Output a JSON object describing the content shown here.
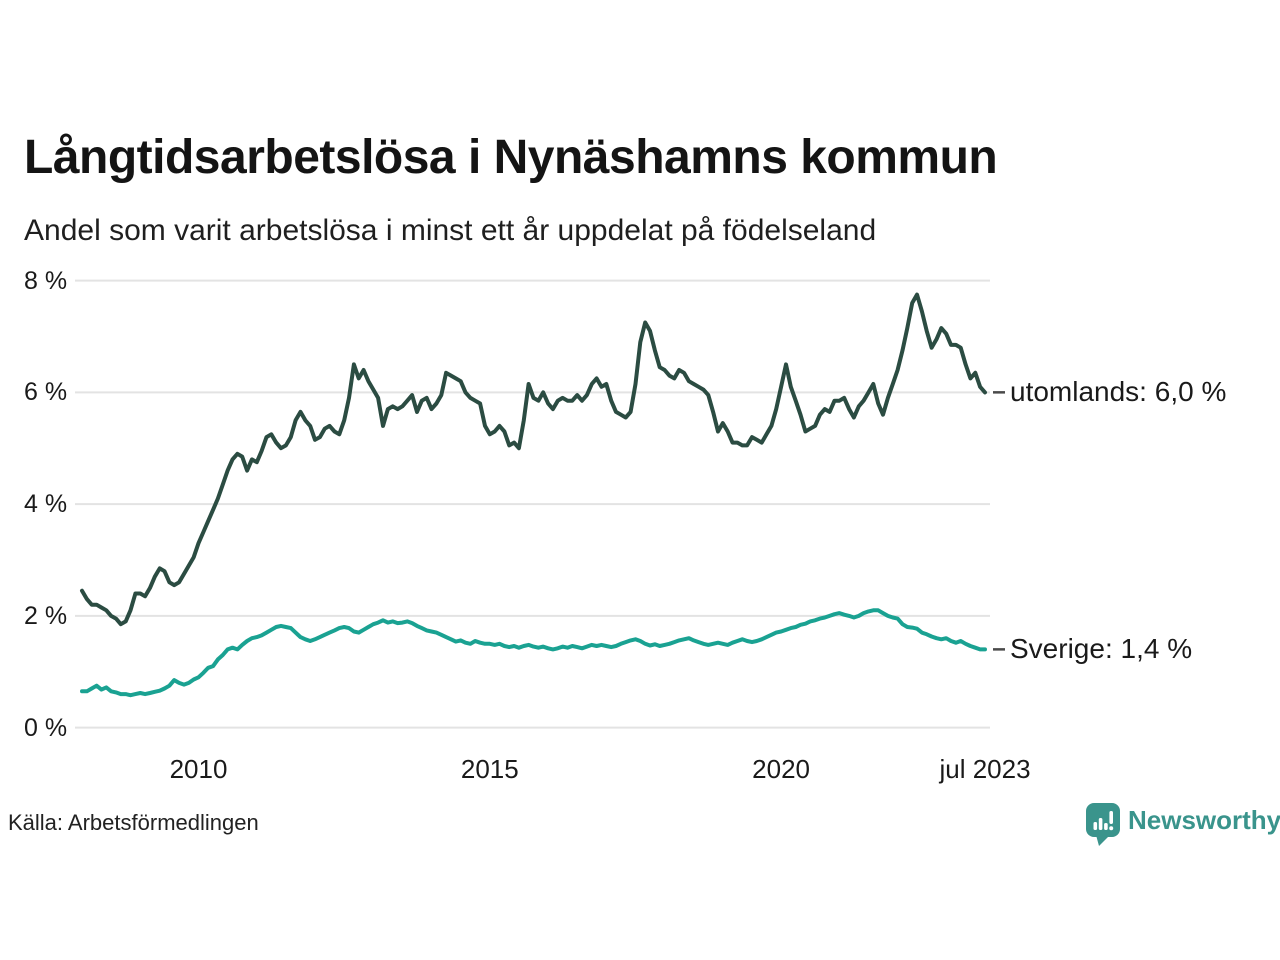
{
  "header": {
    "title": "Långtidsarbetslösa i Nynäshamns kommun",
    "subtitle": "Andel som varit arbetslösa i minst ett år uppdelat på födelseland"
  },
  "footer": {
    "source": "Källa: Arbetsförmedlingen",
    "brand": "Newsworthy",
    "brand_icon": "bar-chart-speech-bubble-icon",
    "brand_color": "#3a948c"
  },
  "chart_data": {
    "type": "line",
    "title": "Långtidsarbetslösa i Nynäshamns kommun",
    "subtitle": "Andel som varit arbetslösa i minst ett år uppdelat på födelseland",
    "x_unit": "month",
    "x_range": [
      "2008-01",
      "2023-07"
    ],
    "ylim": [
      0,
      8
    ],
    "grid": "horizontal",
    "grid_color": "#e3e3e3",
    "annotation_dash_color": "#4a4a4a",
    "y_ticks": [
      0,
      2,
      4,
      6,
      8
    ],
    "y_tick_labels": [
      "0 %",
      "2 %",
      "4 %",
      "6 %",
      "8 %"
    ],
    "x_tick_labels": [
      "2010",
      "2015",
      "2020",
      "jul 2023"
    ],
    "x_tick_month_index": [
      24,
      84,
      144,
      186
    ],
    "legend_position": "end-of-line-labels",
    "series": [
      {
        "name": "utomlands",
        "color": "#2b4c42",
        "end_label": "utomlands: 6,0 %",
        "last_value_label": "6,0 %",
        "values": [
          2.45,
          2.3,
          2.2,
          2.2,
          2.15,
          2.1,
          2.0,
          1.95,
          1.85,
          1.9,
          2.1,
          2.4,
          2.4,
          2.35,
          2.5,
          2.7,
          2.85,
          2.8,
          2.6,
          2.55,
          2.6,
          2.75,
          2.9,
          3.05,
          3.3,
          3.5,
          3.7,
          3.9,
          4.1,
          4.35,
          4.6,
          4.8,
          4.9,
          4.85,
          4.6,
          4.8,
          4.75,
          4.95,
          5.2,
          5.25,
          5.1,
          5.0,
          5.05,
          5.2,
          5.5,
          5.65,
          5.5,
          5.4,
          5.15,
          5.2,
          5.35,
          5.4,
          5.3,
          5.25,
          5.5,
          5.9,
          6.5,
          6.25,
          6.4,
          6.2,
          6.05,
          5.9,
          5.4,
          5.7,
          5.75,
          5.7,
          5.75,
          5.85,
          5.95,
          5.65,
          5.85,
          5.9,
          5.7,
          5.8,
          5.95,
          6.35,
          6.3,
          6.25,
          6.2,
          6.0,
          5.9,
          5.85,
          5.8,
          5.4,
          5.25,
          5.3,
          5.4,
          5.3,
          5.05,
          5.1,
          5.0,
          5.5,
          6.15,
          5.9,
          5.85,
          6.0,
          5.8,
          5.7,
          5.85,
          5.9,
          5.85,
          5.85,
          5.95,
          5.85,
          5.95,
          6.15,
          6.25,
          6.1,
          6.15,
          5.85,
          5.65,
          5.6,
          5.55,
          5.65,
          6.15,
          6.9,
          7.25,
          7.1,
          6.75,
          6.45,
          6.4,
          6.3,
          6.25,
          6.4,
          6.35,
          6.2,
          6.15,
          6.1,
          6.05,
          5.95,
          5.65,
          5.3,
          5.45,
          5.3,
          5.1,
          5.1,
          5.05,
          5.05,
          5.2,
          5.15,
          5.1,
          5.25,
          5.4,
          5.7,
          6.1,
          6.5,
          6.1,
          5.85,
          5.6,
          5.3,
          5.35,
          5.4,
          5.6,
          5.7,
          5.65,
          5.85,
          5.85,
          5.9,
          5.7,
          5.55,
          5.75,
          5.85,
          6.0,
          6.15,
          5.8,
          5.6,
          5.9,
          6.15,
          6.4,
          6.75,
          7.15,
          7.6,
          7.75,
          7.45,
          7.1,
          6.8,
          6.95,
          7.15,
          7.05,
          6.85,
          6.85,
          6.8,
          6.5,
          6.25,
          6.35,
          6.1,
          6.0
        ]
      },
      {
        "name": "Sverige",
        "color": "#1aa292",
        "end_label": "Sverige: 1,4 %",
        "last_value_label": "1,4 %",
        "values": [
          0.65,
          0.65,
          0.7,
          0.75,
          0.68,
          0.72,
          0.65,
          0.63,
          0.6,
          0.6,
          0.58,
          0.6,
          0.62,
          0.6,
          0.62,
          0.64,
          0.66,
          0.7,
          0.75,
          0.85,
          0.8,
          0.77,
          0.8,
          0.86,
          0.9,
          0.98,
          1.07,
          1.1,
          1.22,
          1.3,
          1.4,
          1.43,
          1.4,
          1.48,
          1.55,
          1.6,
          1.62,
          1.65,
          1.7,
          1.75,
          1.8,
          1.82,
          1.8,
          1.78,
          1.7,
          1.62,
          1.58,
          1.55,
          1.58,
          1.62,
          1.66,
          1.7,
          1.74,
          1.78,
          1.8,
          1.78,
          1.72,
          1.7,
          1.75,
          1.8,
          1.85,
          1.88,
          1.92,
          1.88,
          1.9,
          1.87,
          1.88,
          1.9,
          1.87,
          1.82,
          1.78,
          1.74,
          1.72,
          1.7,
          1.66,
          1.62,
          1.58,
          1.54,
          1.56,
          1.52,
          1.5,
          1.55,
          1.52,
          1.5,
          1.5,
          1.48,
          1.5,
          1.46,
          1.44,
          1.46,
          1.43,
          1.46,
          1.48,
          1.45,
          1.43,
          1.45,
          1.42,
          1.4,
          1.42,
          1.45,
          1.43,
          1.46,
          1.44,
          1.42,
          1.45,
          1.48,
          1.46,
          1.48,
          1.46,
          1.44,
          1.46,
          1.5,
          1.53,
          1.56,
          1.58,
          1.55,
          1.5,
          1.47,
          1.49,
          1.46,
          1.48,
          1.5,
          1.53,
          1.56,
          1.58,
          1.6,
          1.56,
          1.53,
          1.5,
          1.48,
          1.5,
          1.52,
          1.5,
          1.48,
          1.52,
          1.55,
          1.58,
          1.55,
          1.53,
          1.55,
          1.58,
          1.62,
          1.66,
          1.7,
          1.72,
          1.75,
          1.78,
          1.8,
          1.84,
          1.86,
          1.9,
          1.92,
          1.95,
          1.97,
          2.0,
          2.03,
          2.05,
          2.02,
          2.0,
          1.97,
          2.0,
          2.05,
          2.08,
          2.1,
          2.1,
          2.05,
          2.0,
          1.97,
          1.95,
          1.85,
          1.8,
          1.79,
          1.77,
          1.7,
          1.67,
          1.63,
          1.6,
          1.58,
          1.6,
          1.55,
          1.52,
          1.55,
          1.5,
          1.46,
          1.43,
          1.4,
          1.4
        ]
      }
    ]
  }
}
